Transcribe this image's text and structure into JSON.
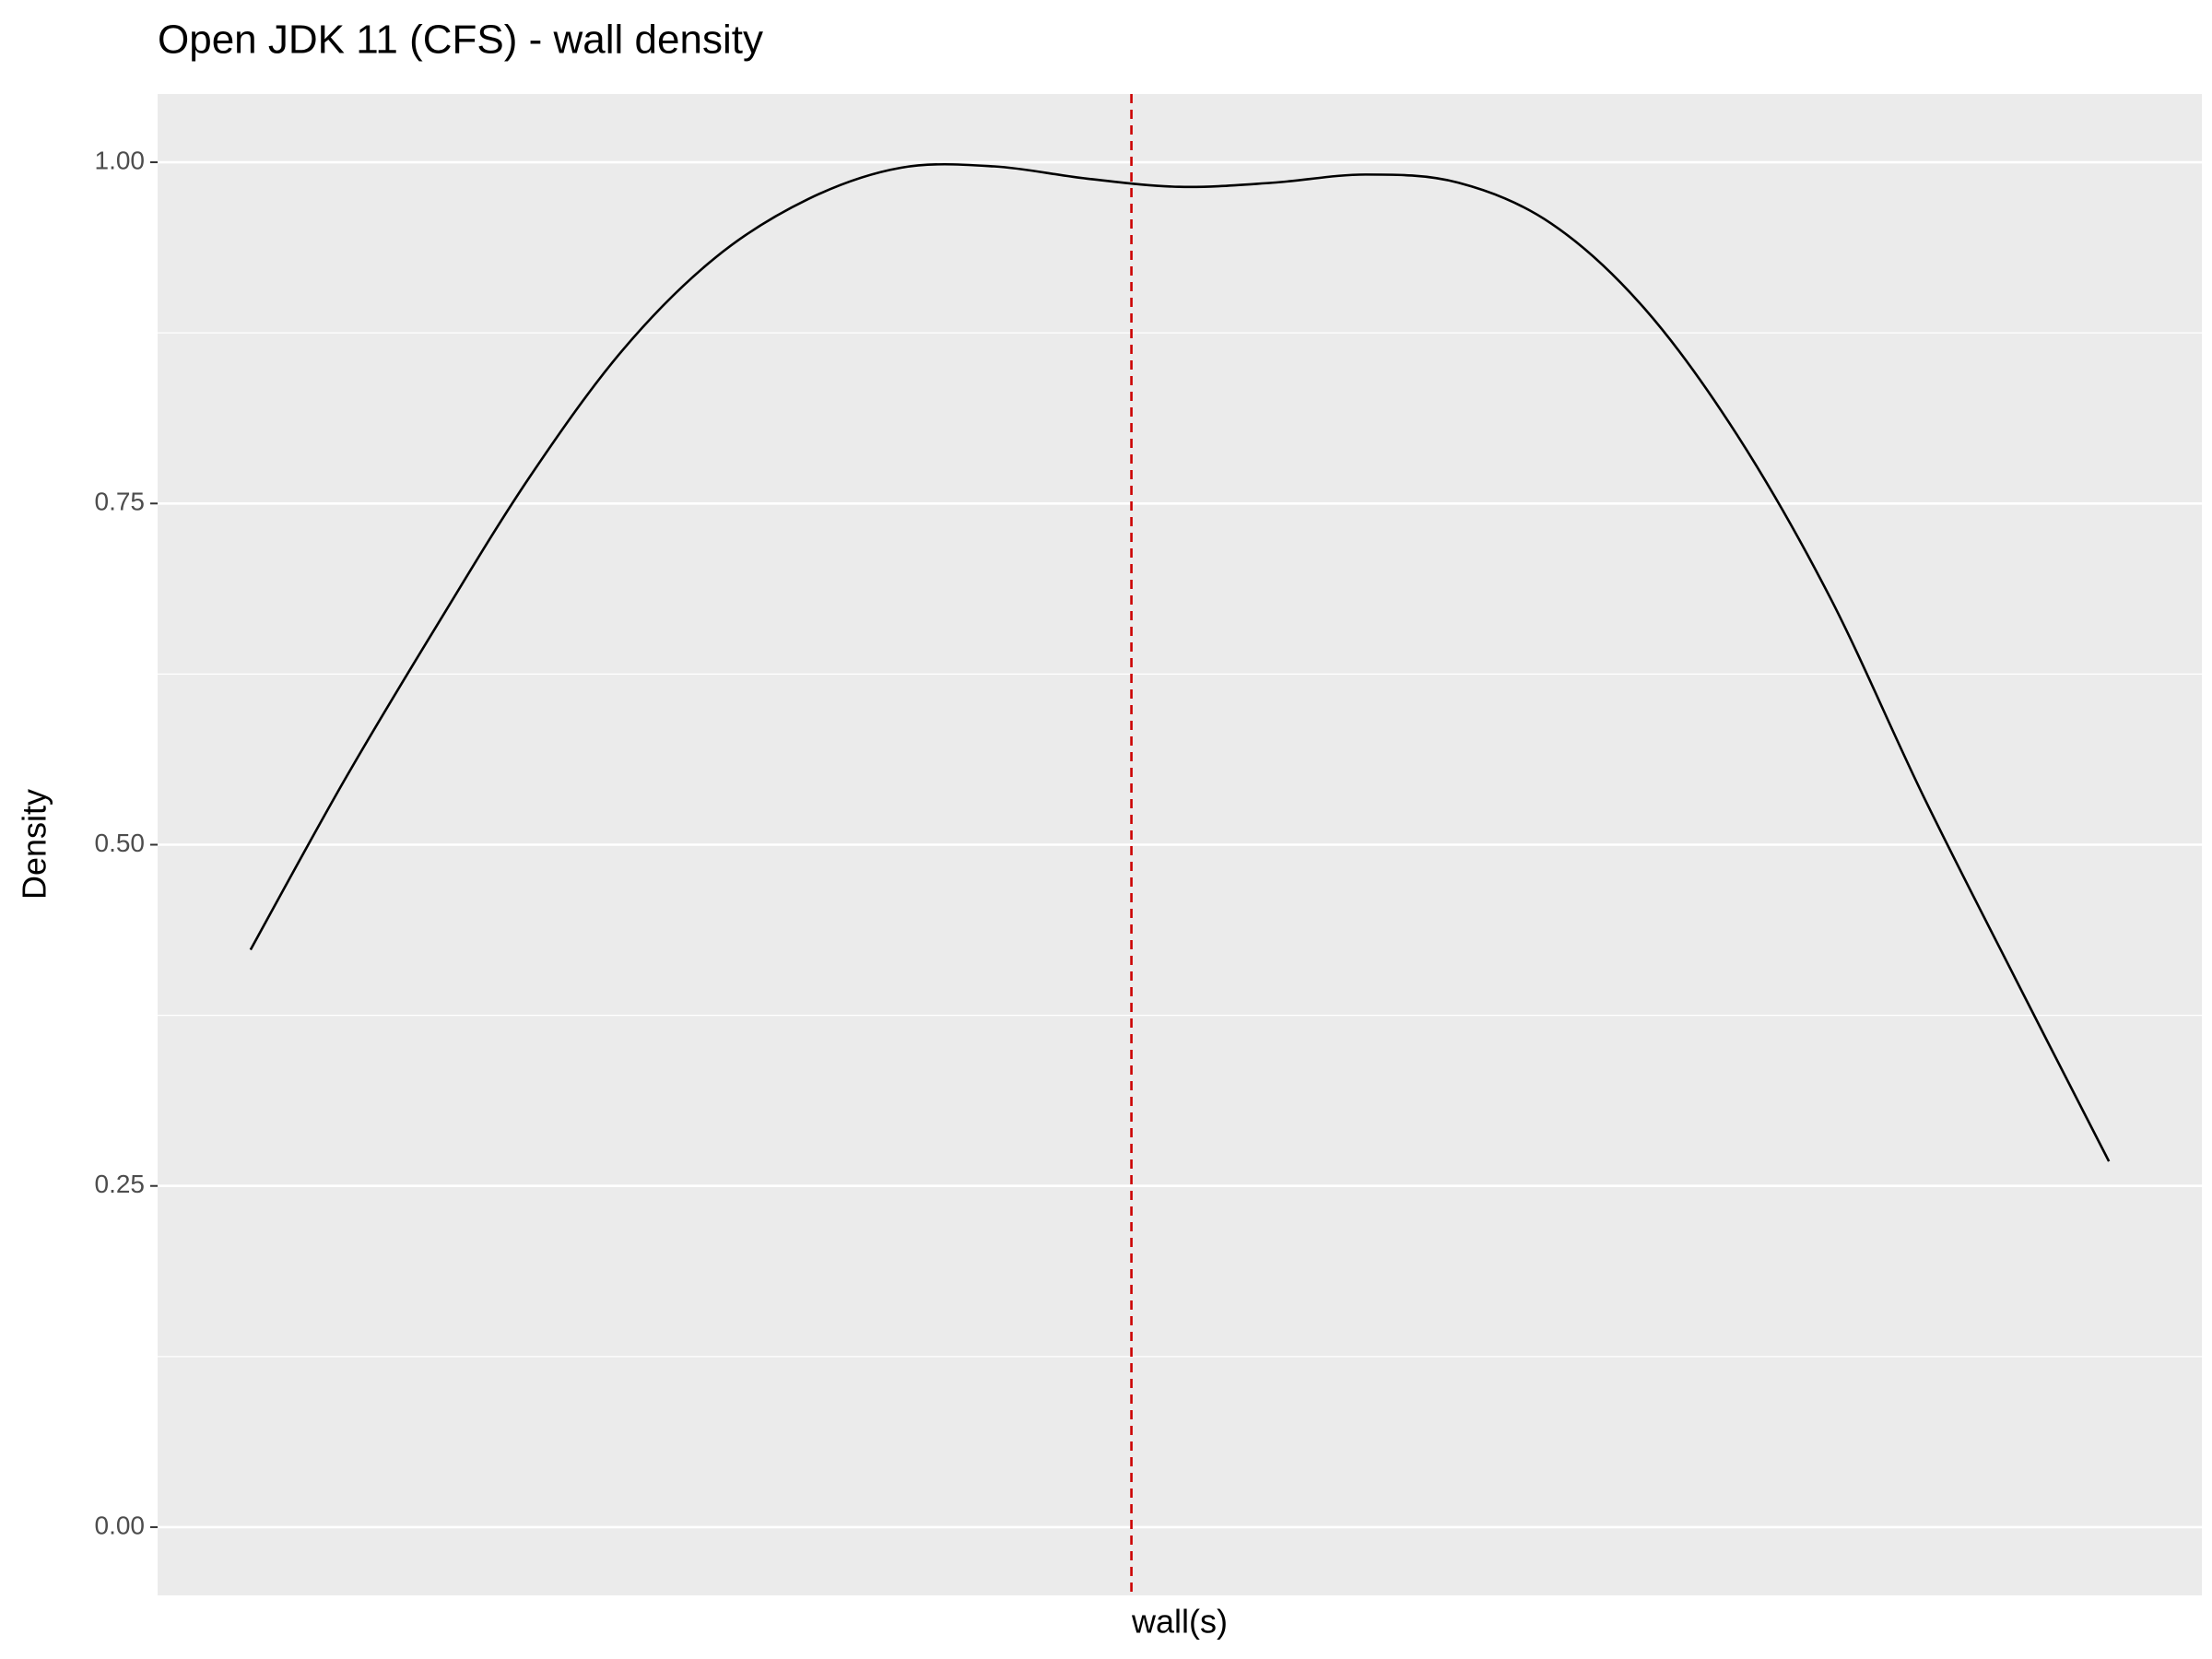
{
  "chart_data": {
    "type": "line",
    "title": "Open JDK 11 (CFS) - wall density",
    "x_label": "wall(s)",
    "y_label": "Density",
    "x": [
      0,
      0.05,
      0.1,
      0.15,
      0.2,
      0.25,
      0.3,
      0.35,
      0.4,
      0.45,
      0.5,
      0.55,
      0.6,
      0.65,
      0.7,
      0.75,
      0.8,
      0.85,
      0.9,
      0.95,
      1.0
    ],
    "series": [
      {
        "color": "#000000",
        "values": [
          0.423,
          0.546,
          0.66,
          0.769,
          0.862,
          0.93,
          0.973,
          0.996,
          0.997,
          0.988,
          0.982,
          0.985,
          0.991,
          0.985,
          0.955,
          0.893,
          0.8,
          0.681,
          0.536,
          0.401,
          0.268
        ]
      }
    ],
    "vline": {
      "x": 0.474,
      "color": "#cc0000"
    },
    "xlim": [
      -0.05,
      1.05
    ],
    "ylim": [
      -0.05,
      1.05
    ],
    "yticks": [
      {
        "value": 0,
        "label": "0.00"
      },
      {
        "value": 0.25,
        "label": "0.25"
      },
      {
        "value": 0.5,
        "label": "0.50"
      },
      {
        "value": 0.75,
        "label": "0.75"
      },
      {
        "value": 1,
        "label": "1.00"
      }
    ],
    "minor_yticks": [
      0.125,
      0.375,
      0.625,
      0.875
    ],
    "grid": true
  }
}
